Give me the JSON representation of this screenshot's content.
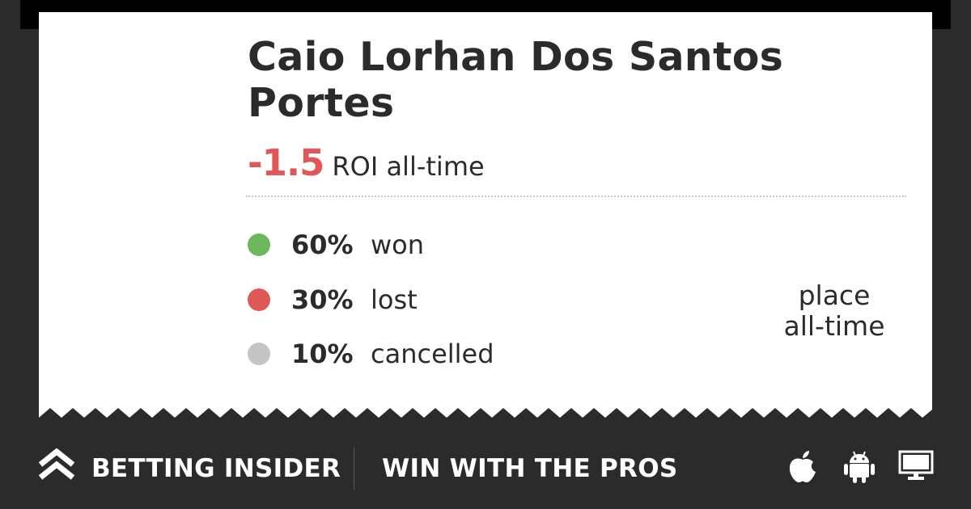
{
  "player": {
    "name": "Caio Lorhan Dos Santos Portes"
  },
  "roi": {
    "value": "-1.5",
    "label": "ROI all-time"
  },
  "stats": [
    {
      "percent": "60%",
      "label": "won",
      "color": "#6cb85c"
    },
    {
      "percent": "30%",
      "label": "lost",
      "color": "#e05757"
    },
    {
      "percent": "10%",
      "label": "cancelled",
      "color": "#c4c4c4"
    }
  ],
  "place": {
    "line1": "place",
    "line2": "all-time"
  },
  "footer": {
    "brand": "BETTING INSIDER",
    "tagline": "WIN WITH THE PROS",
    "logo_icon": "double-chevron-up-icon",
    "platform_icons": [
      "apple-icon",
      "android-icon",
      "desktop-icon"
    ]
  },
  "colors": {
    "background": "#2b2b2b",
    "card": "#ffffff",
    "negative": "#e05757",
    "won": "#6cb85c",
    "cancelled": "#c4c4c4"
  }
}
